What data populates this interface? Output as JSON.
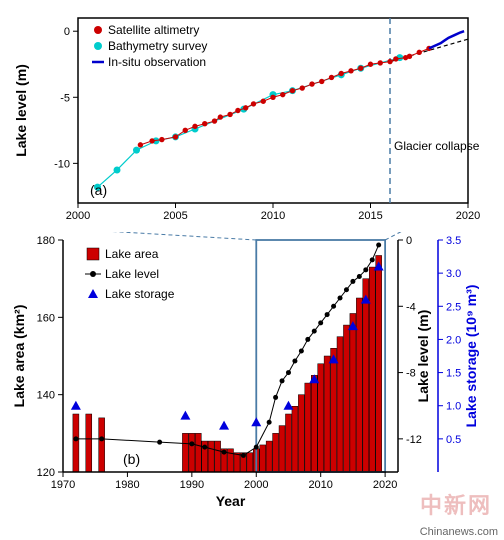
{
  "panel_a": {
    "label": "(a)",
    "ylabel": "Lake level (m)",
    "xlim": [
      2000,
      2020
    ],
    "ylim": [
      -13,
      1
    ],
    "xticks": [
      2000,
      2005,
      2010,
      2015,
      2020
    ],
    "yticks": [
      -10,
      -5,
      0
    ],
    "glacier_collapse_label": "Glacier collapse",
    "glacier_collapse_x": 2016,
    "glacier_line_color": "#4a7ba6",
    "axis_color": "#000000",
    "legend": {
      "satellite": {
        "label": "Satellite altimetry",
        "color": "#cc0000",
        "marker": "circle"
      },
      "bathy": {
        "label": "Bathymetry survey",
        "color": "#00cccc",
        "marker": "circle"
      },
      "insitu": {
        "label": "In-situ observation",
        "color": "#0000cc",
        "type": "line"
      }
    },
    "dashed_trend_color": "#000000",
    "satellite_data": [
      [
        2003.2,
        -8.6
      ],
      [
        2003.8,
        -8.3
      ],
      [
        2004.3,
        -8.2
      ],
      [
        2005.0,
        -8.0
      ],
      [
        2005.5,
        -7.5
      ],
      [
        2006.0,
        -7.2
      ],
      [
        2006.5,
        -7.0
      ],
      [
        2007.0,
        -6.8
      ],
      [
        2007.3,
        -6.5
      ],
      [
        2007.8,
        -6.3
      ],
      [
        2008.2,
        -6.0
      ],
      [
        2008.6,
        -5.8
      ],
      [
        2009.0,
        -5.5
      ],
      [
        2009.5,
        -5.3
      ],
      [
        2010.0,
        -5.0
      ],
      [
        2010.5,
        -4.8
      ],
      [
        2011.0,
        -4.5
      ],
      [
        2011.5,
        -4.3
      ],
      [
        2012.0,
        -4.0
      ],
      [
        2012.5,
        -3.8
      ],
      [
        2013.0,
        -3.5
      ],
      [
        2013.5,
        -3.2
      ],
      [
        2014.0,
        -3.0
      ],
      [
        2014.5,
        -2.8
      ],
      [
        2015.0,
        -2.5
      ],
      [
        2015.5,
        -2.4
      ],
      [
        2016.0,
        -2.3
      ],
      [
        2016.3,
        -2.1
      ],
      [
        2016.8,
        -2.0
      ],
      [
        2017.0,
        -1.9
      ],
      [
        2017.5,
        -1.6
      ],
      [
        2018.0,
        -1.3
      ]
    ],
    "bathy_data": [
      [
        2001.0,
        -11.8
      ],
      [
        2002.0,
        -10.5
      ],
      [
        2003.0,
        -9.0
      ],
      [
        2004.0,
        -8.3
      ],
      [
        2005.0,
        -8.0
      ],
      [
        2006.0,
        -7.4
      ],
      [
        2008.5,
        -5.9
      ],
      [
        2010.0,
        -4.8
      ],
      [
        2011.0,
        -4.5
      ],
      [
        2013.5,
        -3.3
      ],
      [
        2014.5,
        -2.8
      ],
      [
        2016.5,
        -2.0
      ]
    ],
    "insitu_data": [
      [
        2018.0,
        -1.3
      ],
      [
        2018.3,
        -1.1
      ],
      [
        2018.6,
        -0.9
      ],
      [
        2018.8,
        -0.7
      ],
      [
        2019.0,
        -0.5
      ],
      [
        2019.3,
        -0.3
      ],
      [
        2019.6,
        -0.1
      ],
      [
        2019.8,
        0.0
      ]
    ],
    "label_fontsize": 14,
    "tick_fontsize": 11
  },
  "panel_b": {
    "label": "(b)",
    "xlabel": "Year",
    "ylabel_left": "Lake area (km²)",
    "ylabel_right1": "Lake level (m)",
    "ylabel_right2": "Lake storage (10⁹ m³)",
    "xlim": [
      1970,
      2022
    ],
    "ylim_left": [
      120,
      180
    ],
    "ylim_right1": [
      -14,
      0
    ],
    "ylim_right2": [
      0,
      3.5
    ],
    "xticks": [
      1970,
      1980,
      1990,
      2000,
      2010,
      2020
    ],
    "yticks_left": [
      120,
      140,
      160,
      180
    ],
    "yticks_right1": [
      -12,
      -8,
      -4,
      0
    ],
    "yticks_right2": [
      0.5,
      1.0,
      1.5,
      2.0,
      2.5,
      3.0,
      3.5
    ],
    "bar_color": "#cc0000",
    "level_color": "#000000",
    "storage_color": "#0000dd",
    "right2_axis_color": "#0000dd",
    "box_color": "#4a7ba6",
    "legend": {
      "area": "Lake area",
      "level": "Lake level",
      "storage": "Lake storage"
    },
    "area_data": [
      [
        1972,
        135
      ],
      [
        1974,
        135
      ],
      [
        1976,
        134
      ],
      [
        1989,
        130
      ],
      [
        1990,
        130
      ],
      [
        1991,
        130
      ],
      [
        1992,
        128
      ],
      [
        1993,
        128
      ],
      [
        1994,
        128
      ],
      [
        1995,
        126
      ],
      [
        1996,
        126
      ],
      [
        1997,
        125
      ],
      [
        1998,
        125
      ],
      [
        1999,
        125
      ],
      [
        2000,
        126
      ],
      [
        2001,
        127
      ],
      [
        2002,
        128
      ],
      [
        2003,
        130
      ],
      [
        2004,
        132
      ],
      [
        2005,
        135
      ],
      [
        2006,
        137
      ],
      [
        2007,
        140
      ],
      [
        2008,
        143
      ],
      [
        2009,
        145
      ],
      [
        2010,
        148
      ],
      [
        2011,
        150
      ],
      [
        2012,
        152
      ],
      [
        2013,
        155
      ],
      [
        2014,
        158
      ],
      [
        2015,
        161
      ],
      [
        2016,
        165
      ],
      [
        2017,
        170
      ],
      [
        2018,
        173
      ],
      [
        2019,
        176
      ]
    ],
    "level_data": [
      [
        1972,
        -12.0
      ],
      [
        1976,
        -12.0
      ],
      [
        1985,
        -12.2
      ],
      [
        1990,
        -12.3
      ],
      [
        1992,
        -12.5
      ],
      [
        1995,
        -12.8
      ],
      [
        1998,
        -13.0
      ],
      [
        2000,
        -12.5
      ],
      [
        2002,
        -11.0
      ],
      [
        2003,
        -9.5
      ],
      [
        2004,
        -8.5
      ],
      [
        2005,
        -8.0
      ],
      [
        2006,
        -7.3
      ],
      [
        2007,
        -6.7
      ],
      [
        2008,
        -6.0
      ],
      [
        2009,
        -5.5
      ],
      [
        2010,
        -5.0
      ],
      [
        2011,
        -4.5
      ],
      [
        2012,
        -4.0
      ],
      [
        2013,
        -3.5
      ],
      [
        2014,
        -3.0
      ],
      [
        2015,
        -2.5
      ],
      [
        2016,
        -2.2
      ],
      [
        2017,
        -1.8
      ],
      [
        2018,
        -1.2
      ],
      [
        2019,
        -0.3
      ]
    ],
    "storage_data": [
      [
        1972,
        1.0
      ],
      [
        1989,
        0.85
      ],
      [
        1995,
        0.7
      ],
      [
        2000,
        0.75
      ],
      [
        2005,
        1.0
      ],
      [
        2009,
        1.4
      ],
      [
        2012,
        1.7
      ],
      [
        2015,
        2.2
      ],
      [
        2017,
        2.6
      ],
      [
        2019,
        3.1
      ]
    ],
    "label_fontsize": 14,
    "tick_fontsize": 11
  },
  "watermark_text": "中新网",
  "source_text": "Chinanews.com"
}
